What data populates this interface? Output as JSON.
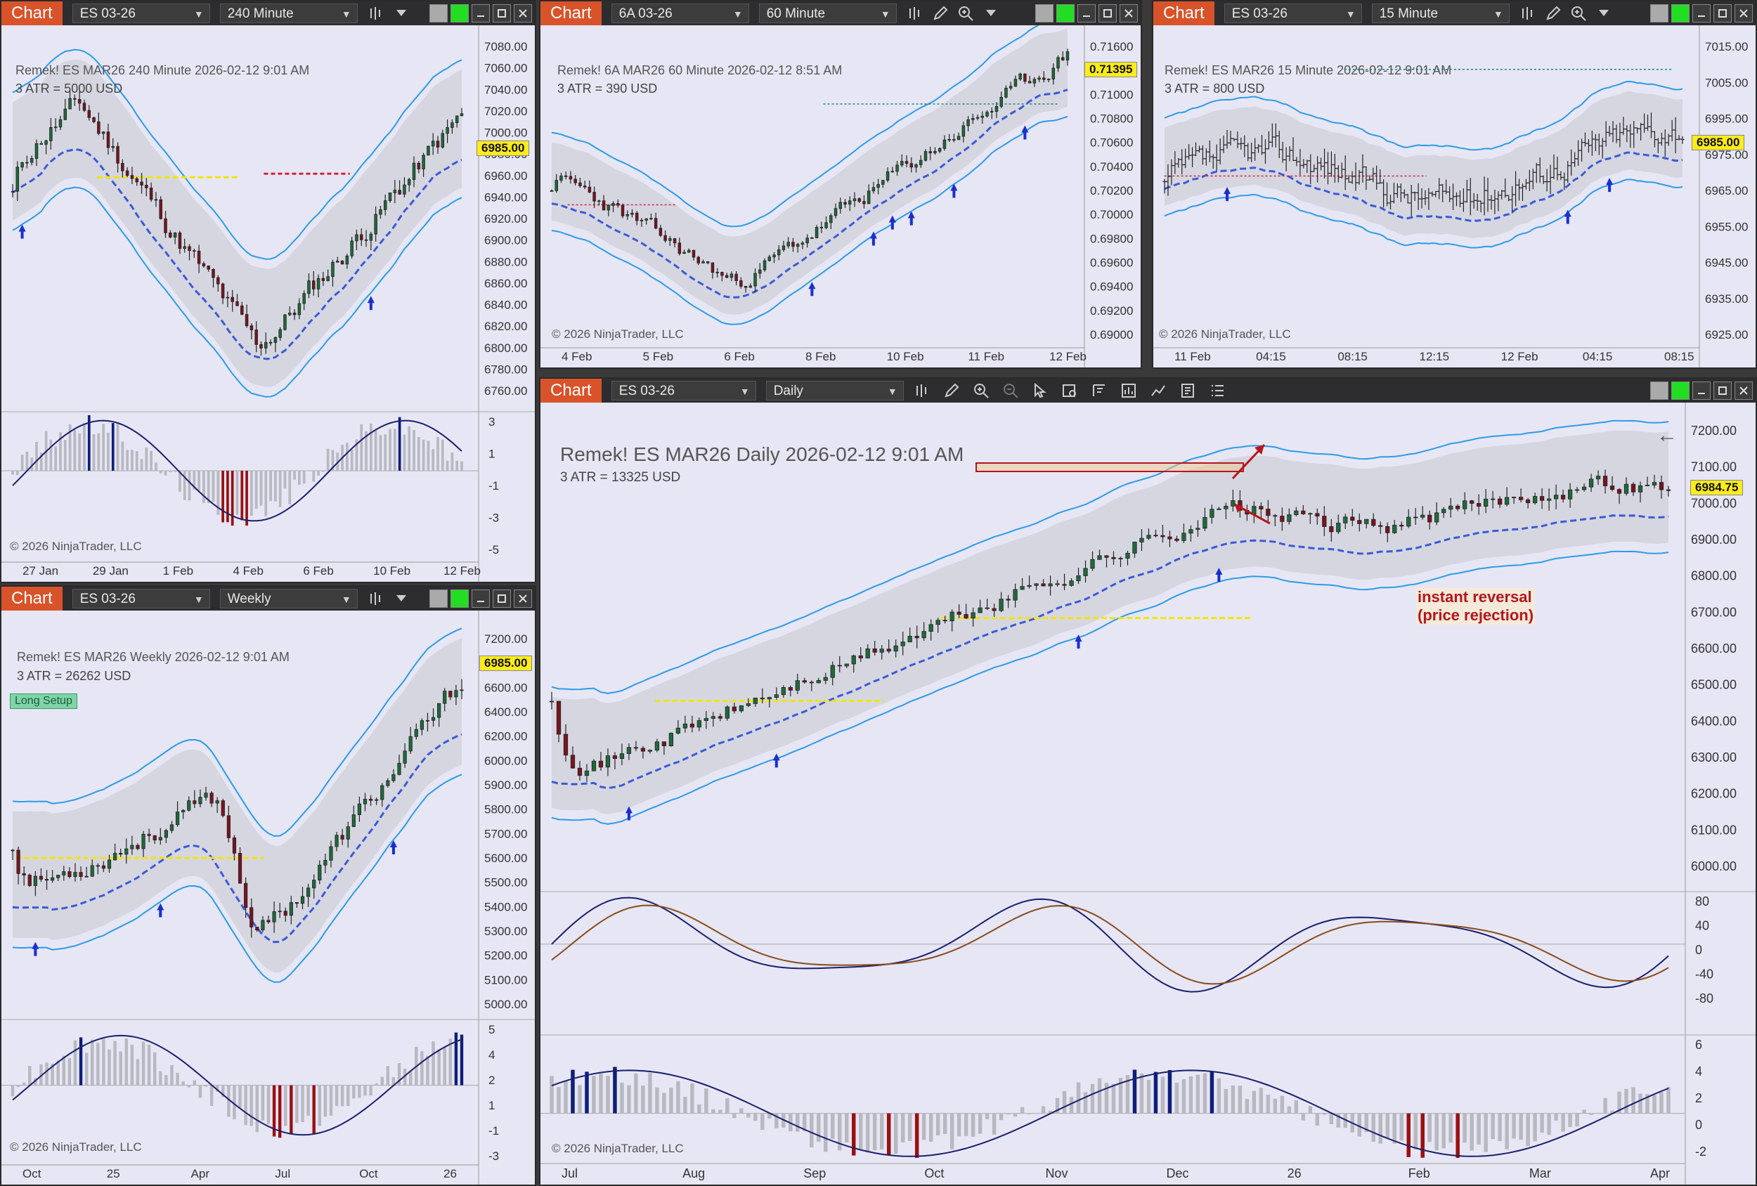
{
  "windows": {
    "w1": {
      "tab": "Chart",
      "instrument": "ES 03-26",
      "interval": "240 Minute",
      "title": "Remek!  ES MAR26  240 Minute  2026-02-12 9:01 AM",
      "atr": "3 ATR = 5000 USD",
      "price_tag": "6985.00",
      "copyright": "© 2026 NinjaTrader, LLC",
      "y_ticks": [
        "7080.00",
        "7060.00",
        "7040.00",
        "7020.00",
        "7000.00",
        "6980.00",
        "6960.00",
        "6940.00",
        "6920.00",
        "6900.00",
        "6880.00",
        "6860.00",
        "6840.00",
        "6820.00",
        "6800.00",
        "6780.00",
        "6760.00"
      ],
      "osc_ticks": [
        "3",
        "1",
        "-1",
        "-3",
        "-5"
      ],
      "x_ticks": [
        "27 Jan",
        "29 Jan",
        "1 Feb",
        "4 Feb",
        "6 Feb",
        "10 Feb",
        "12 Feb"
      ]
    },
    "w2": {
      "tab": "Chart",
      "instrument": "6A 03-26",
      "interval": "60 Minute",
      "title": "Remek!  6A MAR26  60 Minute  2026-02-12 8:51 AM",
      "atr": "3 ATR = 390 USD",
      "price_tag": "0.71395",
      "copyright": "© 2026 NinjaTrader, LLC",
      "y_ticks": [
        "0.71600",
        "0.71200",
        "0.71000",
        "0.70800",
        "0.70600",
        "0.70400",
        "0.70200",
        "0.70000",
        "0.69800",
        "0.69600",
        "0.69400",
        "0.69200",
        "0.69000"
      ],
      "x_ticks": [
        "4 Feb",
        "5 Feb",
        "6 Feb",
        "8 Feb",
        "10 Feb",
        "11 Feb",
        "12 Feb"
      ]
    },
    "w3": {
      "tab": "Chart",
      "instrument": "ES 03-26",
      "interval": "15 Minute",
      "title": "Remek!  ES MAR26  15 Minute  2026-02-12 9:01 AM",
      "atr": "3 ATR = 800 USD",
      "price_tag": "6985.00",
      "copyright": "© 2026 NinjaTrader, LLC",
      "y_ticks": [
        "7015.00",
        "7005.00",
        "6995.00",
        "6975.00",
        "6965.00",
        "6955.00",
        "6945.00",
        "6935.00",
        "6925.00"
      ],
      "x_ticks": [
        "11 Feb",
        "04:15",
        "08:15",
        "12:15",
        "12 Feb",
        "04:15",
        "08:15"
      ]
    },
    "w4": {
      "tab": "Chart",
      "instrument": "ES 03-26",
      "interval": "Weekly",
      "title": "Remek!  ES MAR26  Weekly  2026-02-12 9:01 AM",
      "atr": "3 ATR = 26262 USD",
      "badge": "Long Setup",
      "price_tag": "6985.00",
      "copyright": "© 2026 NinjaTrader, LLC",
      "y_ticks": [
        "7200.00",
        "6800.00",
        "6600.00",
        "6400.00",
        "6200.00",
        "6000.00",
        "5900.00",
        "5800.00",
        "5700.00",
        "5600.00",
        "5500.00",
        "5400.00",
        "5300.00",
        "5200.00",
        "5100.00",
        "5000.00"
      ],
      "osc_ticks": [
        "5",
        "4",
        "2",
        "1",
        "-1",
        "-3"
      ],
      "x_ticks": [
        "Oct",
        "25",
        "Apr",
        "Jul",
        "Oct",
        "26"
      ]
    },
    "w5": {
      "tab": "Chart",
      "instrument": "ES 03-26",
      "interval": "Daily",
      "title": "Remek!  ES MAR26  Daily  2026-02-12 9:01 AM",
      "atr": "3 ATR = 13325 USD",
      "price_tag": "6984.75",
      "annotation_line1": "instant reversal",
      "annotation_line2": "(price rejection)",
      "copyright": "© 2026 NinjaTrader, LLC",
      "y_ticks": [
        "7200.00",
        "7100.00",
        "7000.00",
        "6900.00",
        "6800.00",
        "6700.00",
        "6600.00",
        "6500.00",
        "6400.00",
        "6300.00",
        "6200.00",
        "6100.00",
        "6000.00"
      ],
      "osc1_ticks": [
        "80",
        "40",
        "0",
        "-40",
        "-80"
      ],
      "osc2_ticks": [
        "6",
        "4",
        "2",
        "0",
        "-2"
      ],
      "x_ticks": [
        "Jul",
        "Aug",
        "Sep",
        "Oct",
        "Nov",
        "Dec",
        "26",
        "Feb",
        "Mar",
        "Apr"
      ]
    }
  },
  "colors": {
    "tab": "#d9532a",
    "titlebar": "#2d2d30",
    "chart_bg": "#e6e6f5",
    "upper_band": "#2e9be6",
    "mid_blue": "#3a5bd6",
    "mid_red": "#d4223a",
    "level": "#f2e600",
    "bull_hist": "#0e1e7a",
    "bear_hist": "#9a1010",
    "neutral_hist": "#b8b8c0"
  }
}
